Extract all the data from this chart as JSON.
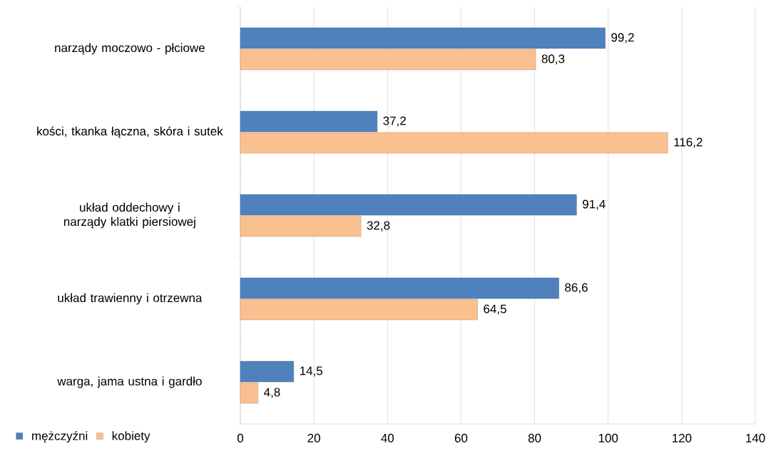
{
  "chart_data": {
    "type": "bar",
    "orientation": "horizontal",
    "categories": [
      "narządy moczowo - płciowe",
      "kości, tkanka łączna, skóra i sutek",
      "układ oddechowy i narządy klatki piersiowej",
      "układ trawienny i otrzewna",
      "warga, jama ustna i gardło"
    ],
    "series": [
      {
        "name": "mężczyźni",
        "color": "#4f81bd",
        "values": [
          99.2,
          37.2,
          91.4,
          86.6,
          14.5
        ],
        "value_labels": [
          "99,2",
          "37,2",
          "91,4",
          "86,6",
          "14,5"
        ]
      },
      {
        "name": "kobiety",
        "color": "#fac090",
        "values": [
          80.3,
          116.2,
          32.8,
          64.5,
          4.8
        ],
        "value_labels": [
          "80,3",
          "116,2",
          "32,8",
          "64,5",
          "4,8"
        ]
      }
    ],
    "xlim": [
      0,
      140
    ],
    "xticks": [
      0,
      20,
      40,
      60,
      80,
      100,
      120,
      140
    ],
    "grid": "x",
    "legend": "bottom left"
  }
}
